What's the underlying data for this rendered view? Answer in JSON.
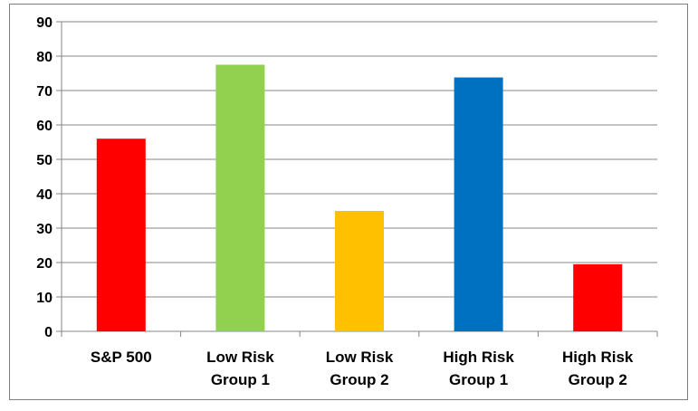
{
  "chart_data": {
    "type": "bar",
    "title": "",
    "xlabel": "",
    "ylabel": "",
    "ylim": [
      0,
      90
    ],
    "yticks": [
      0,
      10,
      20,
      30,
      40,
      50,
      60,
      70,
      80,
      90
    ],
    "grid": true,
    "legend": "none",
    "categories": [
      [
        "S&P 500"
      ],
      [
        "Low Risk",
        "Group 1"
      ],
      [
        "Low Risk",
        "Group 2"
      ],
      [
        "High Risk",
        "Group 1"
      ],
      [
        "High Risk",
        "Group 2"
      ]
    ],
    "values": [
      56,
      77.5,
      35,
      73.8,
      19.5
    ],
    "colors": [
      "#ff0000",
      "#92d050",
      "#ffc000",
      "#0070c0",
      "#ff0000"
    ]
  }
}
